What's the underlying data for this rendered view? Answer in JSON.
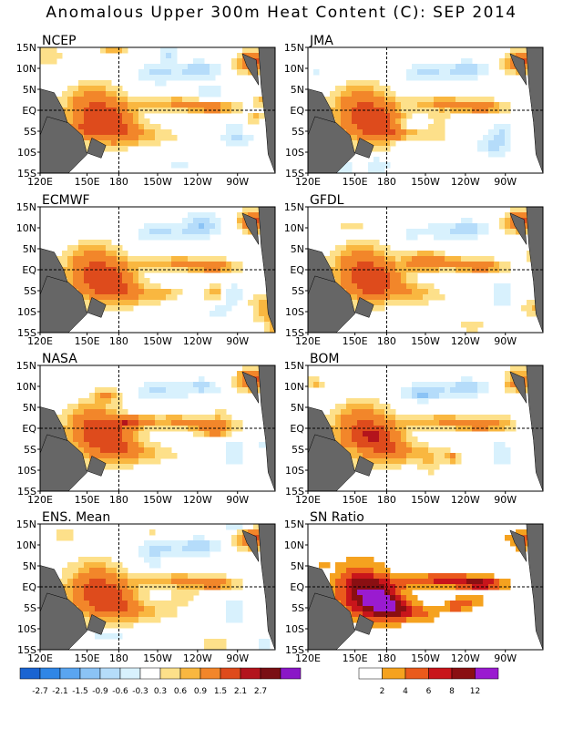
{
  "title": "Anomalous Upper 300m Heat Content (C): SEP 2014",
  "lat_ticks": [
    "15N",
    "10N",
    "5N",
    "EQ",
    "5S",
    "10S",
    "15S"
  ],
  "lon_ticks": [
    "120E",
    "150E",
    "180",
    "150W",
    "120W",
    "90W"
  ],
  "panels": [
    {
      "label": "NCEP"
    },
    {
      "label": "JMA"
    },
    {
      "label": "ECMWF"
    },
    {
      "label": "GFDL"
    },
    {
      "label": "NASA"
    },
    {
      "label": "BOM"
    },
    {
      "label": "ENS. Mean"
    },
    {
      "label": "SN Ratio"
    }
  ],
  "chart_data": {
    "type": "heatmap",
    "title": "Anomalous Upper 300m Heat Content (C): SEP 2014",
    "x_axis": {
      "ticks": [
        "120E",
        "150E",
        "180",
        "150W",
        "120W",
        "90W"
      ]
    },
    "y_axis": {
      "ticks": [
        "15N",
        "10N",
        "5N",
        "EQ",
        "5S",
        "10S",
        "15S"
      ]
    },
    "panels": [
      "NCEP",
      "JMA",
      "ECMWF",
      "GFDL",
      "NASA",
      "BOM",
      "ENS. Mean",
      "SN Ratio"
    ],
    "anomaly_scale": {
      "labels": [
        "-2.7",
        "-2.1",
        "-1.5",
        "-0.9",
        "-0.6",
        "-0.3",
        "0.3",
        "0.6",
        "0.9",
        "1.5",
        "2.1",
        "2.7"
      ],
      "colors": [
        "#1a64d2",
        "#2f86e6",
        "#5aa5f0",
        "#8bc3f5",
        "#b5dcfa",
        "#d8f1fd",
        "#ffffff",
        "#fde08a",
        "#f9b740",
        "#f2862a",
        "#de4b1c",
        "#b3141c",
        "#7a0f14",
        "#8a17c7"
      ]
    },
    "sn_scale": {
      "labels": [
        "2",
        "4",
        "6",
        "8",
        "12"
      ],
      "colors": [
        "#ffffff",
        "#f5a21f",
        "#ea5a1c",
        "#c8151b",
        "#8a0f12",
        "#9a1bd0"
      ]
    }
  }
}
